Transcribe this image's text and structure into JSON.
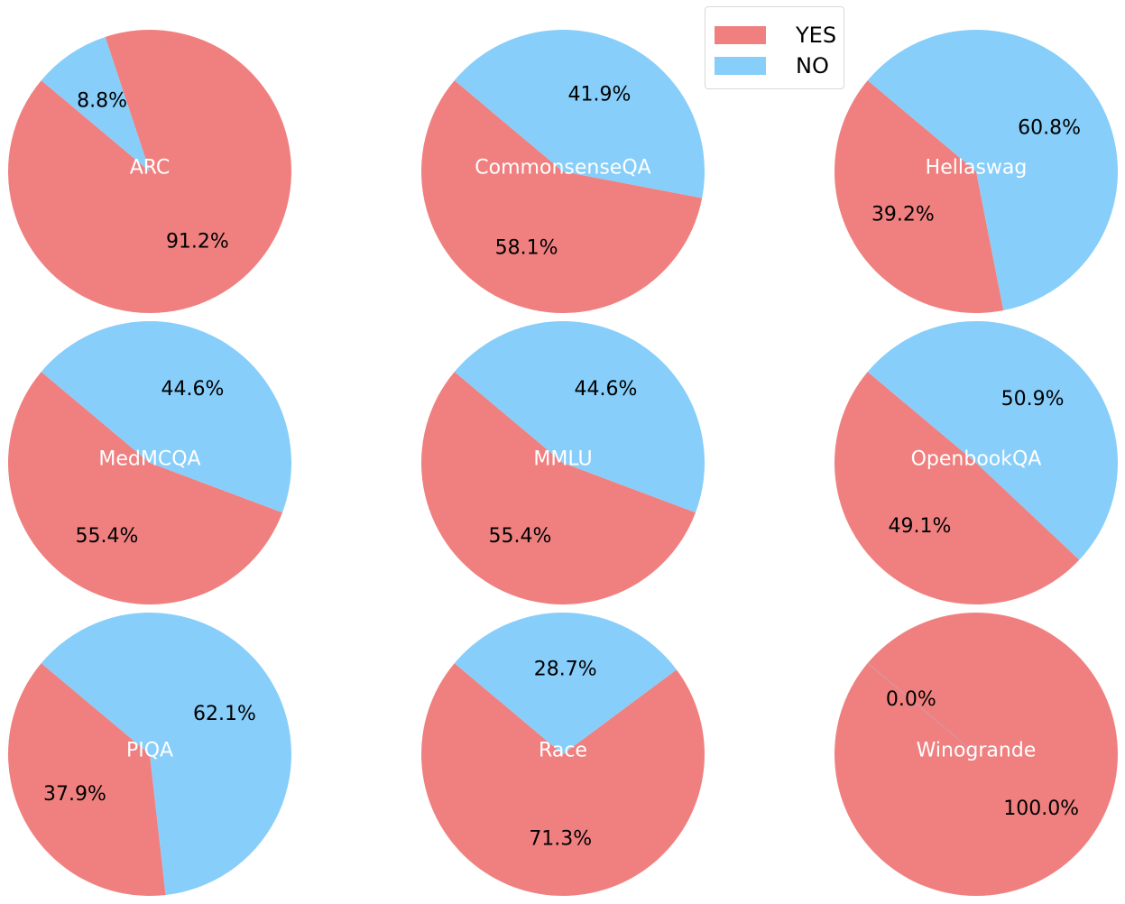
{
  "chart_data": {
    "type": "pie",
    "title": "",
    "legend": {
      "placement": "top-center-right",
      "entries": [
        {
          "label": "YES",
          "color": "#F08080"
        },
        {
          "label": "NO",
          "color": "#87CEFA"
        }
      ]
    },
    "categories": [
      "YES",
      "NO"
    ],
    "start_angle_deg": 140,
    "pies": [
      {
        "name": "ARC",
        "values": [
          91.2,
          8.8
        ],
        "labels": [
          "91.2%",
          "8.8%"
        ]
      },
      {
        "name": "CommonsenseQA",
        "values": [
          58.1,
          41.9
        ],
        "labels": [
          "58.1%",
          "41.9%"
        ]
      },
      {
        "name": "Hellaswag",
        "values": [
          39.2,
          60.8
        ],
        "labels": [
          "39.2%",
          "60.8%"
        ]
      },
      {
        "name": "MedMCQA",
        "values": [
          55.4,
          44.6
        ],
        "labels": [
          "55.4%",
          "44.6%"
        ]
      },
      {
        "name": "MMLU",
        "values": [
          55.4,
          44.6
        ],
        "labels": [
          "55.4%",
          "44.6%"
        ]
      },
      {
        "name": "OpenbookQA",
        "values": [
          49.1,
          50.9
        ],
        "labels": [
          "49.1%",
          "50.9%"
        ]
      },
      {
        "name": "PIQA",
        "values": [
          37.9,
          62.1
        ],
        "labels": [
          "37.9%",
          "62.1%"
        ]
      },
      {
        "name": "Race",
        "values": [
          71.3,
          28.7
        ],
        "labels": [
          "71.3%",
          "28.7%"
        ]
      },
      {
        "name": "Winogrande",
        "values": [
          100.0,
          0.0
        ],
        "labels": [
          "100.0%",
          "0.0%"
        ]
      }
    ]
  }
}
